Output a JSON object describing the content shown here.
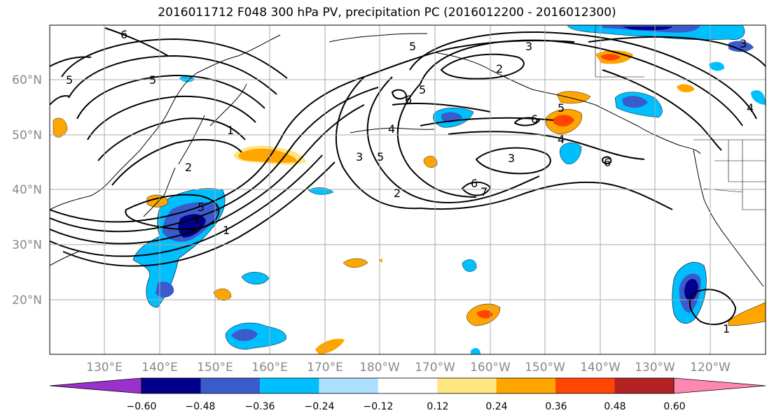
{
  "title": "2016011712 F048 300 hPa PV, precipitation PC (2016012200 - 2016012300)",
  "lat_labels": [
    "60°N",
    "50°N",
    "40°N",
    "30°N",
    "20°N"
  ],
  "lon_labels": [
    "130°E",
    "140°E",
    "150°E",
    "160°E",
    "170°E",
    "180°W",
    "170°W",
    "160°W",
    "150°W",
    "140°W",
    "130°W",
    "120°W"
  ],
  "colorbar": {
    "ticks": [
      "−0.60",
      "−0.48",
      "−0.36",
      "−0.24",
      "−0.12",
      "0.12",
      "0.24",
      "0.36",
      "0.48",
      "0.60"
    ],
    "colors": [
      "#9932CC",
      "#00008B",
      "#3A5BCC",
      "#00BFFF",
      "#ADDFFF",
      "#FFFFFF",
      "#FFE680",
      "#FFA500",
      "#FF4500",
      "#B22222",
      "#FF88B0"
    ]
  },
  "contour_labels": [
    {
      "id": "c6a",
      "text": "6"
    },
    {
      "id": "c5a",
      "text": "5"
    },
    {
      "id": "c5b",
      "text": "5"
    },
    {
      "id": "c1a",
      "text": "1"
    },
    {
      "id": "c2a",
      "text": "2"
    },
    {
      "id": "c5c",
      "text": "5"
    },
    {
      "id": "c3a",
      "text": "3"
    },
    {
      "id": "c5d",
      "text": "5"
    },
    {
      "id": "c4a",
      "text": "4"
    },
    {
      "id": "c2b",
      "text": "2"
    },
    {
      "id": "c3b",
      "text": "3"
    },
    {
      "id": "c3c",
      "text": "3"
    },
    {
      "id": "c2c",
      "text": "2"
    },
    {
      "id": "c6b",
      "text": "6"
    },
    {
      "id": "c6c",
      "text": "6"
    },
    {
      "id": "c5e",
      "text": "5"
    },
    {
      "id": "c4b",
      "text": "4"
    },
    {
      "id": "c6d",
      "text": "6"
    },
    {
      "id": "c3d",
      "text": "3"
    },
    {
      "id": "c7a",
      "text": "7"
    },
    {
      "id": "c6e",
      "text": "6"
    },
    {
      "id": "c1b",
      "text": "1"
    },
    {
      "id": "c1c",
      "text": "1"
    },
    {
      "id": "c4c",
      "text": "4"
    },
    {
      "id": "c3e",
      "text": "3"
    },
    {
      "id": "c5f",
      "text": "5"
    },
    {
      "id": "c5g",
      "text": "5"
    }
  ]
}
